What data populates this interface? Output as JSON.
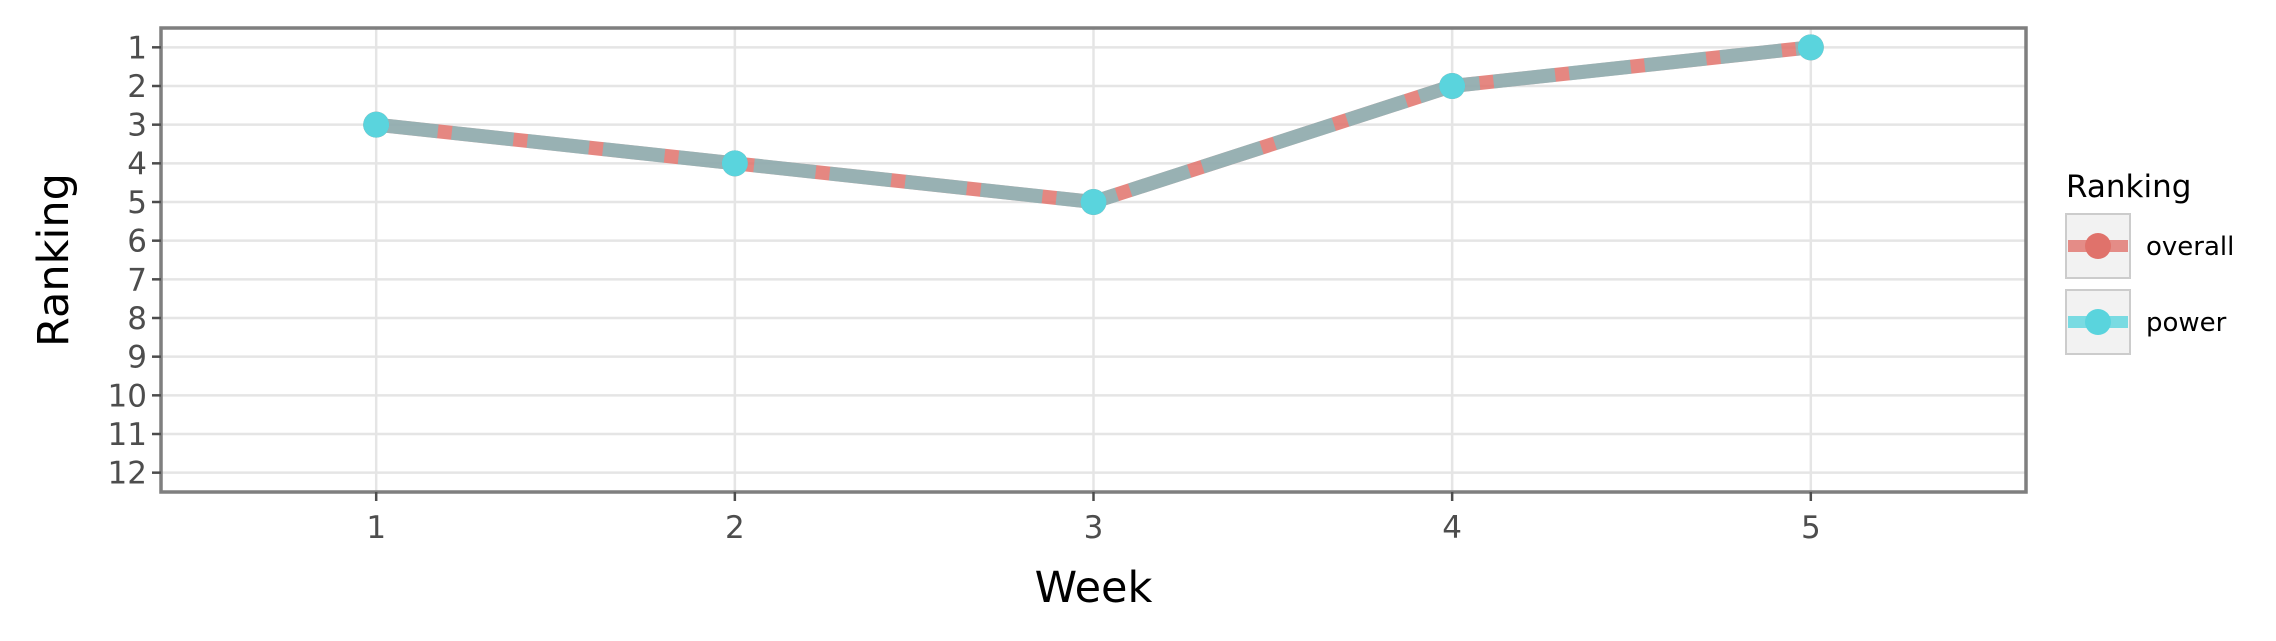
{
  "chart_data": {
    "type": "line",
    "title": "",
    "xlabel": "Week",
    "ylabel": "Ranking",
    "x": [
      1,
      2,
      3,
      4,
      5
    ],
    "xlim": [
      0.4,
      5.6
    ],
    "ylim": [
      12.5,
      0.5
    ],
    "y_reversed": true,
    "x_ticks": [
      "1",
      "2",
      "3",
      "4",
      "5"
    ],
    "y_ticks": [
      "1",
      "2",
      "3",
      "4",
      "5",
      "6",
      "7",
      "8",
      "9",
      "10",
      "11",
      "12"
    ],
    "grid": true,
    "legend": {
      "title": "Ranking",
      "position": "right",
      "entries": [
        "overall",
        "power"
      ]
    },
    "series": [
      {
        "name": "overall",
        "values": [
          3,
          4,
          5,
          2,
          1
        ],
        "color": "#e0726b",
        "line_style": "dashed"
      },
      {
        "name": "power",
        "values": [
          3,
          4,
          5,
          2,
          1
        ],
        "color": "#5ad4dd",
        "line_style": "solid"
      }
    ]
  }
}
